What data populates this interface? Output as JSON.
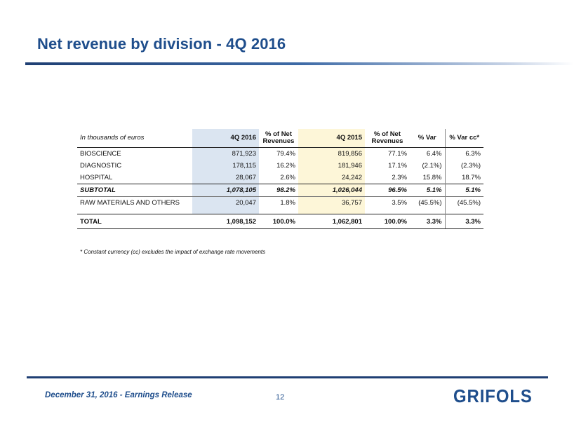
{
  "title": "Net revenue by division - 4Q 2016",
  "table": {
    "headers": {
      "label": "In thousands of euros",
      "q4_2016": "4Q 2016",
      "pct_2016_line1": "% of Net",
      "pct_2016_line2": "Revenues",
      "q4_2015": "4Q 2015",
      "pct_2015_line1": "% of Net",
      "pct_2015_line2": "Revenues",
      "var": "% Var",
      "var_cc": "% Var cc*"
    },
    "rows": [
      {
        "label": "BIOSCIENCE",
        "q4_2016": "871,923",
        "pct_2016": "79.4%",
        "q4_2015": "819,856",
        "pct_2015": "77.1%",
        "var": "6.4%",
        "var_cc": "6.3%"
      },
      {
        "label": "DIAGNOSTIC",
        "q4_2016": "178,115",
        "pct_2016": "16.2%",
        "q4_2015": "181,946",
        "pct_2015": "17.1%",
        "var": "(2.1%)",
        "var_cc": "(2.3%)"
      },
      {
        "label": "HOSPITAL",
        "q4_2016": "28,067",
        "pct_2016": "2.6%",
        "q4_2015": "24,242",
        "pct_2015": "2.3%",
        "var": "15.8%",
        "var_cc": "18.7%"
      },
      {
        "label": "SUBTOTAL",
        "q4_2016": "1,078,105",
        "pct_2016": "98.2%",
        "q4_2015": "1,026,044",
        "pct_2015": "96.5%",
        "var": "5.1%",
        "var_cc": "5.1%"
      },
      {
        "label": "RAW MATERIALS AND OTHERS",
        "q4_2016": "20,047",
        "pct_2016": "1.8%",
        "q4_2015": "36,757",
        "pct_2015": "3.5%",
        "var": "(45.5%)",
        "var_cc": "(45.5%)"
      },
      {
        "label": "TOTAL",
        "q4_2016": "1,098,152",
        "pct_2016": "100.0%",
        "q4_2015": "1,062,801",
        "pct_2015": "100.0%",
        "var": "3.3%",
        "var_cc": "3.3%"
      }
    ]
  },
  "footnote": "* Constant currency (cc) excludes the impact of exchange rate movements",
  "footer": {
    "date_text": "December 31, 2016 - Earnings Release",
    "page_number": "12",
    "logo_text": "GRIFOLS"
  },
  "colors": {
    "brand_blue": "#1f4e8c",
    "col_2016_shade": "#dbe5f1",
    "col_2015_shade": "#fdf6d8"
  }
}
